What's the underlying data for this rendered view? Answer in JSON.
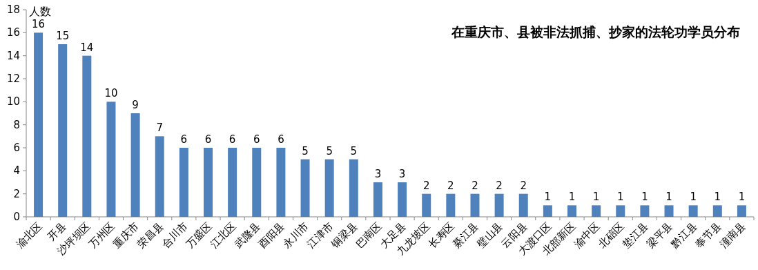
{
  "chart_data": {
    "type": "bar",
    "title": "在重庆市、县被非法抓捕、抄家的法轮功学员分布",
    "ylabel": "人数",
    "categories": [
      "渝北区",
      "开县",
      "沙坪坝区",
      "万州区",
      "重庆市",
      "荣昌县",
      "合川市",
      "万盛区",
      "江北区",
      "武隆县",
      "酉阳县",
      "永川市",
      "江津市",
      "铜梁县",
      "巴南区",
      "大足县",
      "九龙坡区",
      "长寿区",
      "綦江县",
      "璧山县",
      "云阳县",
      "大渡口区",
      "北部新区",
      "渝中区",
      "北碚区",
      "垫江县",
      "梁平县",
      "黔江县",
      "奉节县",
      "潼南县"
    ],
    "values": [
      16,
      15,
      14,
      10,
      9,
      7,
      6,
      6,
      6,
      6,
      6,
      5,
      5,
      5,
      3,
      3,
      2,
      2,
      2,
      2,
      2,
      1,
      1,
      1,
      1,
      1,
      1,
      1,
      1,
      1
    ],
    "color": "#4f81bd",
    "ylim": [
      0,
      18
    ],
    "yticks": [
      0,
      2,
      4,
      6,
      8,
      10,
      12,
      14,
      16,
      18
    ],
    "data_labels": true
  }
}
